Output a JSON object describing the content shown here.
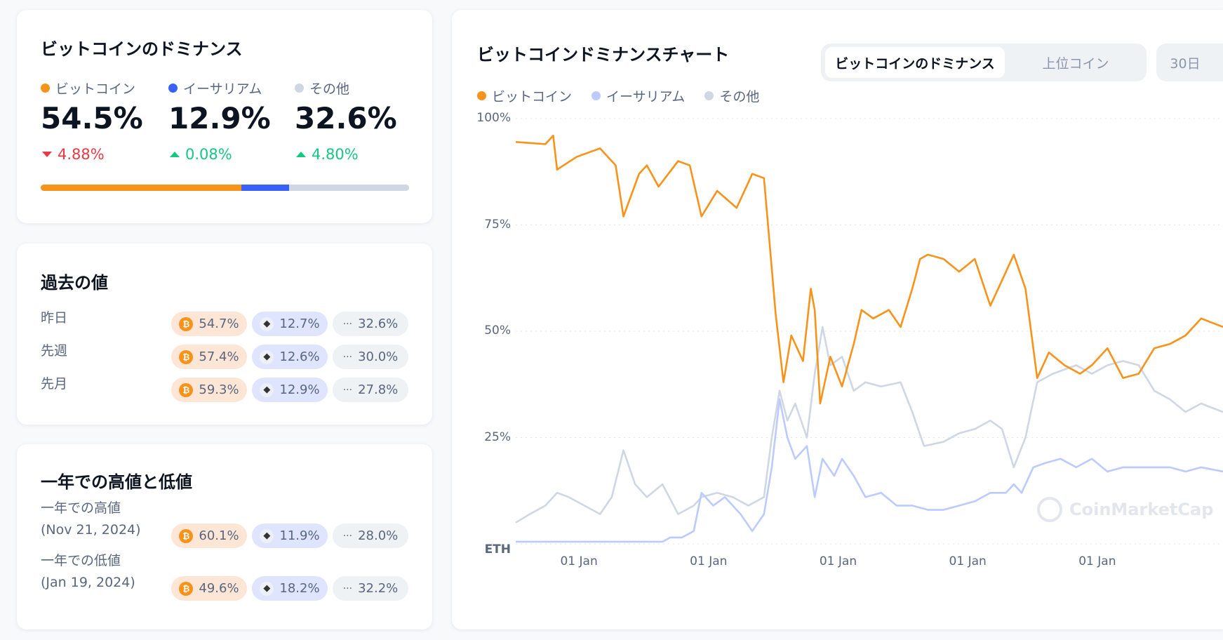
{
  "dominance": {
    "title": "ビットコインのドミナンス",
    "items": [
      {
        "name": "ビットコイン",
        "value": "54.5%",
        "change": "4.88%",
        "dir": "down",
        "color": "#f7931a",
        "share": 54.5
      },
      {
        "name": "イーサリアム",
        "value": "12.9%",
        "change": "0.08%",
        "dir": "up",
        "color": "#3861fb",
        "share": 12.9
      },
      {
        "name": "その他",
        "value": "32.6%",
        "change": "4.80%",
        "dir": "up",
        "color": "#cfd6e4",
        "share": 32.6
      }
    ]
  },
  "history": {
    "title": "過去の値",
    "rows": [
      {
        "label": "昨日",
        "btc": "54.7%",
        "eth": "12.7%",
        "other": "32.6%"
      },
      {
        "label": "先週",
        "btc": "57.4%",
        "eth": "12.6%",
        "other": "30.0%"
      },
      {
        "label": "先月",
        "btc": "59.3%",
        "eth": "12.9%",
        "other": "27.8%"
      }
    ]
  },
  "yearly": {
    "title": "一年での高値と低値",
    "rows": [
      {
        "label": "一年での高値",
        "date": "(Nov 21, 2024)",
        "btc": "60.1%",
        "eth": "11.9%",
        "other": "28.0%"
      },
      {
        "label": "一年での低値",
        "date": "(Jan 19, 2024)",
        "btc": "49.6%",
        "eth": "18.2%",
        "other": "32.2%"
      }
    ]
  },
  "icons": {
    "btc": "₿",
    "eth": "◆",
    "other": "···"
  },
  "chart": {
    "title": "ビットコインドミナンスチャート",
    "tabs": [
      "ビットコインのドミナンス",
      "上位コイン"
    ],
    "range": "30日",
    "watermark": "CoinMarketCap"
  },
  "chart_data": {
    "type": "line",
    "title": "ビットコインドミナンスチャート",
    "ylabel": "",
    "xlabel": "",
    "ylim": [
      0,
      100
    ],
    "xlim": [
      0,
      1812
    ],
    "y_ticks": [
      {
        "v": 100,
        "label": "100%"
      },
      {
        "v": 75,
        "label": "75%"
      },
      {
        "v": 50,
        "label": "50%"
      },
      {
        "v": 25,
        "label": "25%"
      }
    ],
    "y_bottom_label": "ETH",
    "x_ticks": [
      {
        "v": 162,
        "label": "01 Jan"
      },
      {
        "v": 494,
        "label": "01 Jan"
      },
      {
        "v": 826,
        "label": "01 Jan"
      },
      {
        "v": 1158,
        "label": "01 Jan"
      },
      {
        "v": 1490,
        "label": "01 Jan"
      }
    ],
    "legend": "top-left",
    "series": [
      {
        "name": "ビットコイン",
        "color": "#f7931a",
        "points": [
          [
            0,
            94.5
          ],
          [
            76,
            94
          ],
          [
            96,
            96
          ],
          [
            106,
            88
          ],
          [
            156,
            91
          ],
          [
            216,
            93
          ],
          [
            256,
            89
          ],
          [
            276,
            77
          ],
          [
            316,
            87
          ],
          [
            336,
            89
          ],
          [
            366,
            84
          ],
          [
            416,
            90
          ],
          [
            446,
            89
          ],
          [
            476,
            77
          ],
          [
            516,
            83
          ],
          [
            566,
            79
          ],
          [
            606,
            87
          ],
          [
            636,
            86
          ],
          [
            652,
            69
          ],
          [
            666,
            54
          ],
          [
            686,
            38
          ],
          [
            706,
            49
          ],
          [
            736,
            43
          ],
          [
            756,
            60
          ],
          [
            766,
            55
          ],
          [
            780,
            33
          ],
          [
            806,
            44
          ],
          [
            836,
            37
          ],
          [
            866,
            47
          ],
          [
            886,
            55
          ],
          [
            916,
            53
          ],
          [
            956,
            55
          ],
          [
            986,
            51
          ],
          [
            1016,
            60
          ],
          [
            1036,
            67
          ],
          [
            1056,
            68
          ],
          [
            1096,
            67
          ],
          [
            1136,
            64
          ],
          [
            1176,
            67
          ],
          [
            1216,
            56
          ],
          [
            1246,
            62
          ],
          [
            1276,
            68
          ],
          [
            1306,
            60
          ],
          [
            1336,
            39
          ],
          [
            1366,
            45
          ],
          [
            1406,
            42
          ],
          [
            1446,
            40
          ],
          [
            1476,
            42
          ],
          [
            1516,
            46
          ],
          [
            1556,
            39
          ],
          [
            1596,
            40
          ],
          [
            1636,
            46
          ],
          [
            1676,
            47
          ],
          [
            1716,
            49
          ],
          [
            1756,
            53
          ],
          [
            1812,
            51
          ]
        ]
      },
      {
        "name": "イーサリアム",
        "color": "#bccbff",
        "points": [
          [
            0,
            0.5
          ],
          [
            376,
            0.5
          ],
          [
            396,
            1.5
          ],
          [
            426,
            1.5
          ],
          [
            456,
            3
          ],
          [
            476,
            12
          ],
          [
            506,
            9
          ],
          [
            536,
            11
          ],
          [
            576,
            7
          ],
          [
            606,
            3
          ],
          [
            636,
            7
          ],
          [
            656,
            18
          ],
          [
            676,
            34
          ],
          [
            696,
            25
          ],
          [
            716,
            20
          ],
          [
            746,
            23
          ],
          [
            766,
            11
          ],
          [
            786,
            20
          ],
          [
            816,
            16
          ],
          [
            836,
            20
          ],
          [
            866,
            16
          ],
          [
            896,
            11
          ],
          [
            936,
            12
          ],
          [
            976,
            9
          ],
          [
            1016,
            9
          ],
          [
            1056,
            8
          ],
          [
            1096,
            8
          ],
          [
            1136,
            9
          ],
          [
            1176,
            10
          ],
          [
            1216,
            12
          ],
          [
            1256,
            12
          ],
          [
            1276,
            14
          ],
          [
            1296,
            12
          ],
          [
            1326,
            18
          ],
          [
            1356,
            19
          ],
          [
            1396,
            20
          ],
          [
            1436,
            18
          ],
          [
            1476,
            20
          ],
          [
            1516,
            17
          ],
          [
            1556,
            18
          ],
          [
            1596,
            18
          ],
          [
            1636,
            18
          ],
          [
            1676,
            18
          ],
          [
            1716,
            17
          ],
          [
            1756,
            18
          ],
          [
            1812,
            17
          ]
        ]
      },
      {
        "name": "その他",
        "color": "#cfd6e4",
        "points": [
          [
            0,
            5
          ],
          [
            36,
            7
          ],
          [
            76,
            9
          ],
          [
            106,
            12
          ],
          [
            136,
            11
          ],
          [
            176,
            9
          ],
          [
            216,
            7
          ],
          [
            246,
            11
          ],
          [
            276,
            22
          ],
          [
            306,
            14
          ],
          [
            336,
            11
          ],
          [
            376,
            14
          ],
          [
            416,
            7
          ],
          [
            456,
            9
          ],
          [
            476,
            11
          ],
          [
            516,
            12
          ],
          [
            556,
            11
          ],
          [
            596,
            9
          ],
          [
            636,
            11
          ],
          [
            656,
            25
          ],
          [
            676,
            36
          ],
          [
            696,
            29
          ],
          [
            716,
            33
          ],
          [
            746,
            25
          ],
          [
            766,
            40
          ],
          [
            786,
            51
          ],
          [
            806,
            42
          ],
          [
            836,
            44
          ],
          [
            866,
            36
          ],
          [
            896,
            38
          ],
          [
            936,
            37
          ],
          [
            986,
            38
          ],
          [
            1016,
            31
          ],
          [
            1046,
            23
          ],
          [
            1096,
            24
          ],
          [
            1136,
            26
          ],
          [
            1176,
            27
          ],
          [
            1216,
            29
          ],
          [
            1246,
            27
          ],
          [
            1276,
            18
          ],
          [
            1306,
            25
          ],
          [
            1336,
            38
          ],
          [
            1376,
            40
          ],
          [
            1436,
            42
          ],
          [
            1476,
            40
          ],
          [
            1516,
            42
          ],
          [
            1556,
            43
          ],
          [
            1596,
            42
          ],
          [
            1636,
            36
          ],
          [
            1676,
            34
          ],
          [
            1716,
            31
          ],
          [
            1756,
            33
          ],
          [
            1812,
            31
          ]
        ]
      }
    ]
  }
}
